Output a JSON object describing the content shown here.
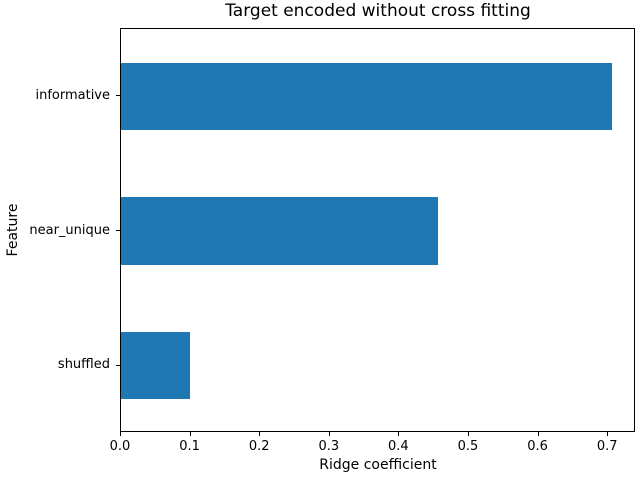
{
  "chart_data": {
    "type": "bar",
    "orientation": "horizontal",
    "title": "Target encoded without cross fitting",
    "xlabel": "Ridge coefficient",
    "ylabel": "Feature",
    "categories": [
      "informative",
      "near_unique",
      "shuffled"
    ],
    "values": [
      0.705,
      0.456,
      0.099
    ],
    "xlim": [
      0,
      0.74
    ],
    "xticks": [
      0,
      0.1,
      0.2,
      0.3,
      0.4,
      0.5,
      0.6,
      0.7
    ],
    "xtick_labels": [
      "0.0",
      "0.1",
      "0.2",
      "0.3",
      "0.4",
      "0.5",
      "0.6",
      "0.7"
    ],
    "bar_color": "#1f77b4",
    "axis_color": "#000000",
    "background_color": "#ffffff",
    "grid": false,
    "bar_rel_height": 0.5
  }
}
